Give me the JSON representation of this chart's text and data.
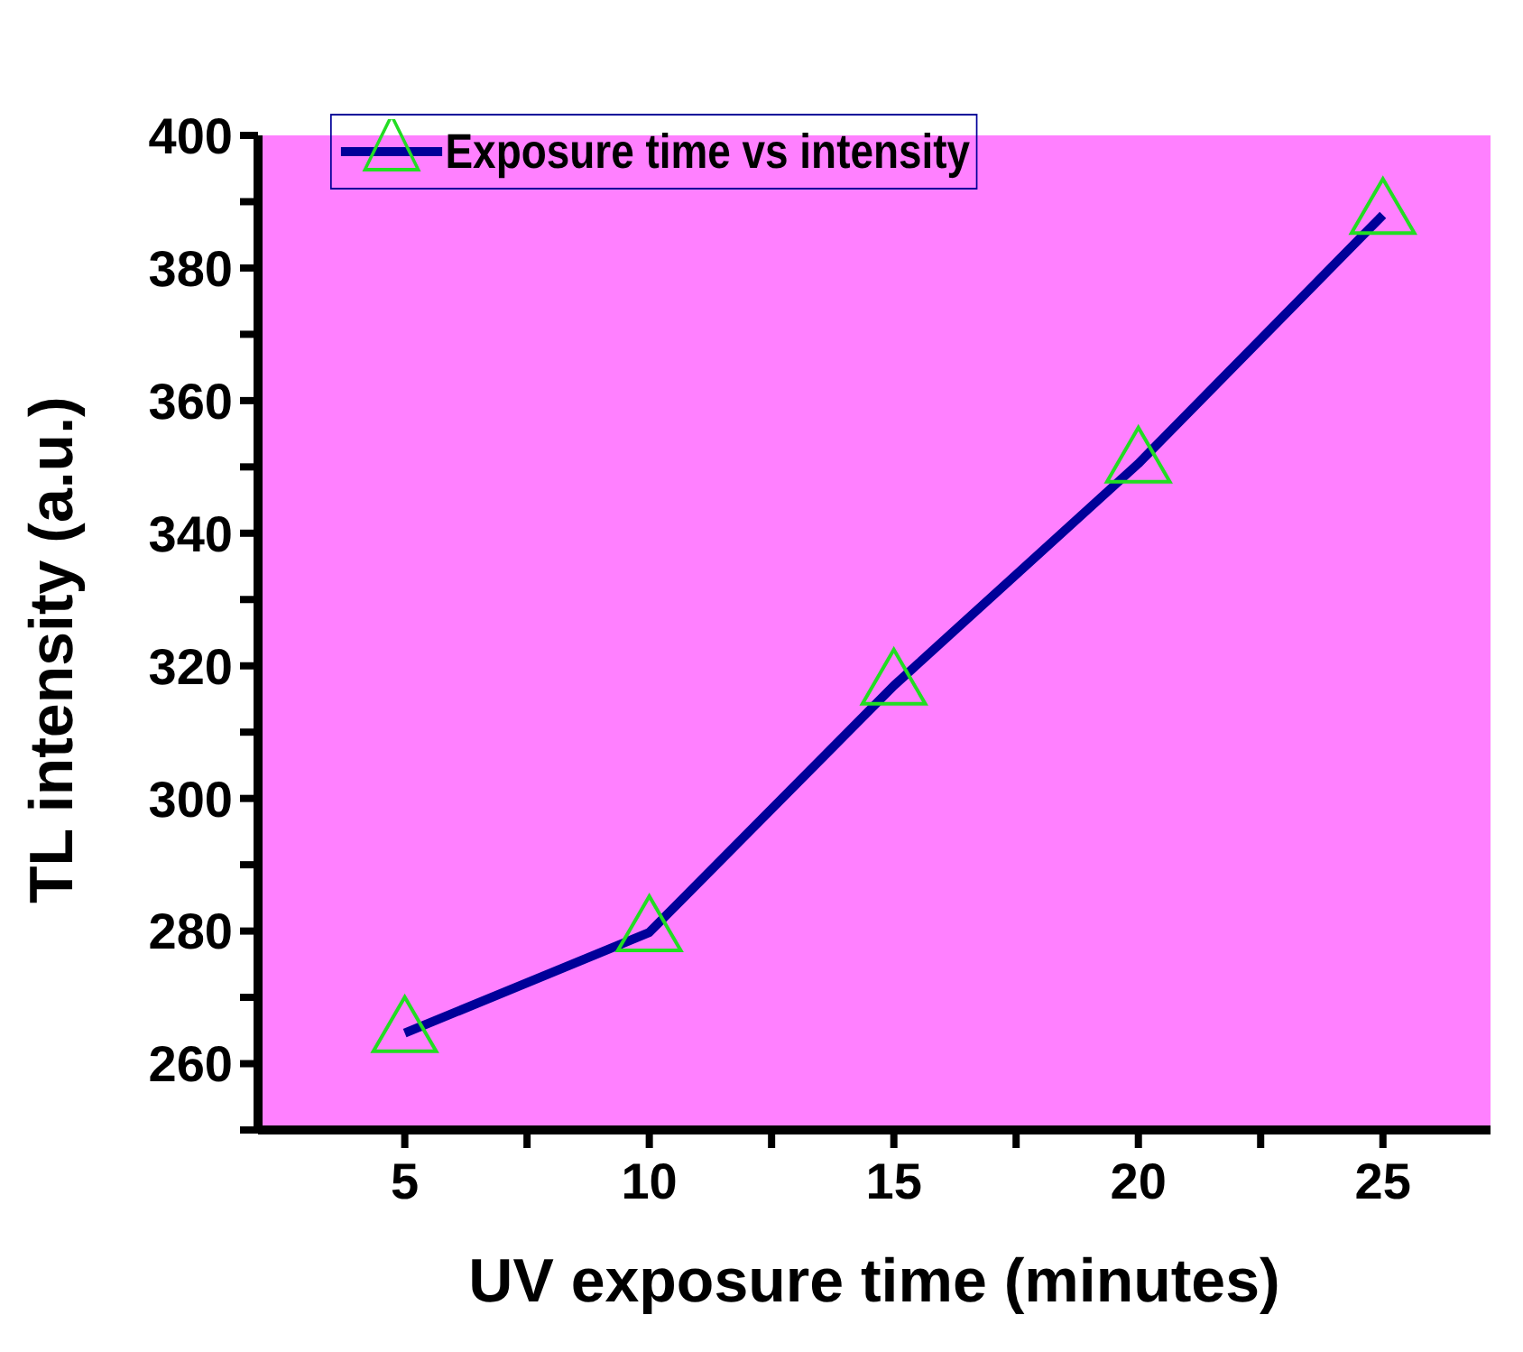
{
  "chart_data": {
    "type": "line",
    "xlabel": "UV exposure time (minutes)",
    "ylabel": "TL intensity (a.u.)",
    "x": [
      5,
      10,
      15,
      20,
      25
    ],
    "series": [
      {
        "name": "Exposure time vs intensity",
        "color": "#000099",
        "colors": [
          "#22dd22",
          "#22dd22",
          "#22dd22",
          "#22dd22",
          "#22dd22"
        ],
        "values": [
          264.6,
          279.8,
          317,
          350.5,
          388
        ]
      }
    ],
    "xlim": [
      2,
      27.2
    ],
    "xticks": [
      5,
      {
        "value": 7.5,
        "label": null
      },
      10,
      {
        "value": 12.5,
        "label": null
      },
      15,
      {
        "value": 17.5,
        "label": null
      },
      20,
      {
        "value": 22.5,
        "label": null
      },
      25
    ],
    "ylim": [
      250,
      400
    ],
    "yticks": [
      {
        "value": 250,
        "label": null
      },
      260,
      {
        "value": 270,
        "label": null
      },
      280,
      {
        "value": 290,
        "label": null
      },
      300,
      {
        "value": 310,
        "label": null
      },
      320,
      {
        "value": 330,
        "label": null
      },
      340,
      {
        "value": 350,
        "label": null
      },
      360,
      {
        "value": 370,
        "label": null
      },
      380,
      {
        "value": 390,
        "label": null
      },
      400
    ],
    "grid": false,
    "legend": "top left",
    "marker": "triangle",
    "line_style": "solid"
  }
}
